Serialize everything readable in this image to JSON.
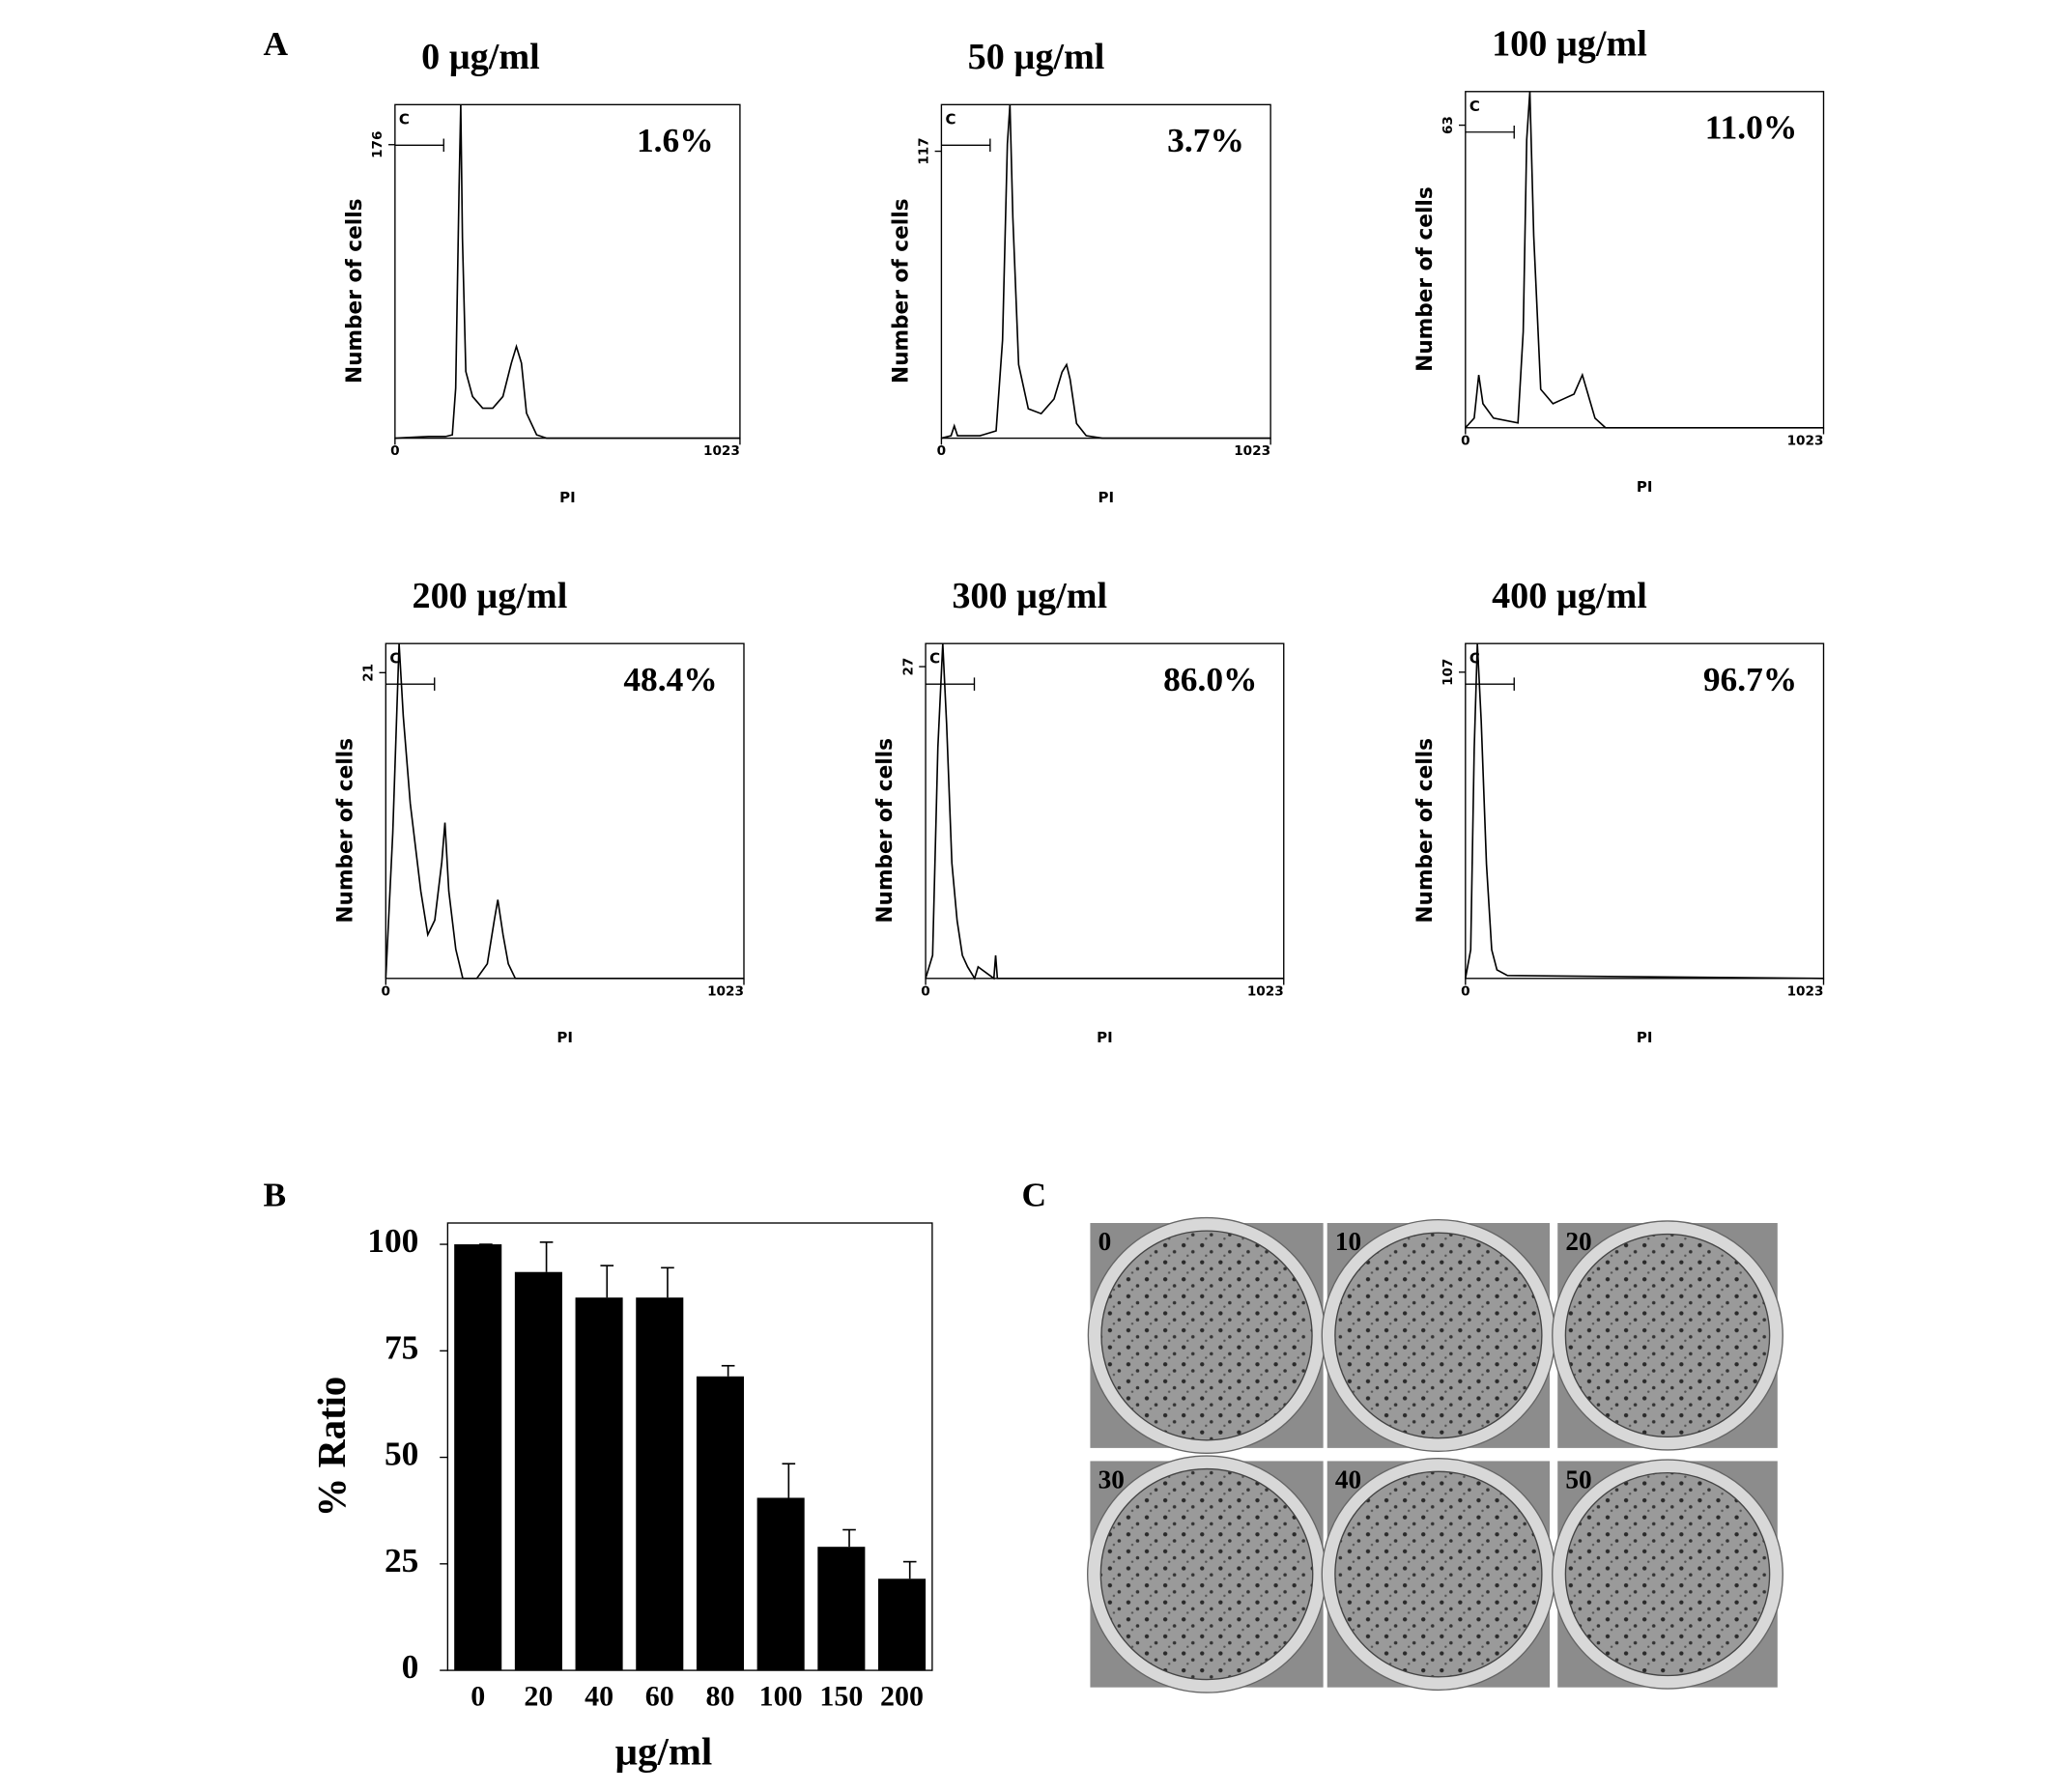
{
  "panel_labels": [
    "A",
    "B",
    "C"
  ],
  "plates": {
    "labels": [
      "0",
      "10",
      "20",
      "30",
      "40",
      "50"
    ]
  },
  "chart_data": [
    {
      "type": "line",
      "title": "0 µg/ml",
      "annotation": "1.6%",
      "gate_label": "C",
      "xlabel": "PI",
      "ylabel": "Number of cells",
      "color": "#000000",
      "x": [
        0,
        100,
        150,
        170,
        180,
        190,
        195,
        200,
        210,
        230,
        260,
        290,
        320,
        345,
        360,
        375,
        390,
        420,
        450,
        500,
        1023
      ],
      "values": [
        0,
        1,
        1,
        2,
        30,
        150,
        200,
        120,
        40,
        25,
        18,
        18,
        25,
        45,
        55,
        45,
        15,
        2,
        0,
        0,
        0
      ],
      "xlim": [
        0,
        1023
      ],
      "xticks": [
        0,
        1023
      ],
      "ylim": [
        0,
        200
      ],
      "yticks": [
        176
      ]
    },
    {
      "type": "line",
      "title": "50 µg/ml",
      "annotation": "3.7%",
      "gate_label": "C",
      "xlabel": "PI",
      "ylabel": "Number of cells",
      "color": "#000000",
      "x": [
        0,
        30,
        40,
        50,
        120,
        170,
        190,
        205,
        213,
        222,
        240,
        270,
        310,
        350,
        375,
        389,
        400,
        420,
        450,
        500,
        1023
      ],
      "values": [
        0,
        1,
        5,
        1,
        1,
        3,
        40,
        120,
        136,
        90,
        30,
        12,
        10,
        16,
        27,
        30,
        24,
        6,
        1,
        0,
        0
      ],
      "xlim": [
        0,
        1023
      ],
      "xticks": [
        0,
        1023
      ],
      "ylim": [
        0,
        136
      ],
      "yticks": [
        117
      ]
    },
    {
      "type": "line",
      "title": "100 µg/ml",
      "annotation": "11.0%",
      "gate_label": "C",
      "xlabel": "PI",
      "ylabel": "Number of cells",
      "color": "#000000",
      "x": [
        0,
        25,
        38,
        50,
        80,
        150,
        165,
        175,
        184,
        195,
        215,
        250,
        280,
        310,
        334,
        350,
        370,
        400,
        1023
      ],
      "values": [
        0,
        2,
        11,
        5,
        2,
        1,
        20,
        60,
        70,
        40,
        8,
        5,
        6,
        7,
        11,
        7,
        2,
        0,
        0
      ],
      "xlim": [
        0,
        1023
      ],
      "xticks": [
        0,
        1023
      ],
      "ylim": [
        0,
        70
      ],
      "yticks": [
        63
      ]
    },
    {
      "type": "line",
      "title": "200 µg/ml",
      "annotation": "48.4%",
      "gate_label": "C",
      "xlabel": "PI",
      "ylabel": "Number of cells",
      "color": "#000000",
      "x": [
        0,
        20,
        38,
        50,
        70,
        100,
        120,
        140,
        160,
        169,
        180,
        200,
        220,
        260,
        290,
        310,
        320,
        335,
        350,
        370,
        1023
      ],
      "values": [
        0,
        10,
        23,
        18,
        12,
        6,
        3,
        4,
        8,
        10.7,
        6,
        2,
        0,
        0,
        1,
        4,
        5.4,
        3,
        1,
        0,
        0
      ],
      "xlim": [
        0,
        1023
      ],
      "xticks": [
        0,
        1023
      ],
      "ylim": [
        0,
        23
      ],
      "yticks": [
        21
      ]
    },
    {
      "type": "line",
      "title": "300 µg/ml",
      "annotation": "86.0%",
      "gate_label": "C",
      "xlabel": "PI",
      "ylabel": "Number of cells",
      "color": "#000000",
      "x": [
        0,
        20,
        35,
        49,
        60,
        75,
        90,
        105,
        120,
        140,
        150,
        195,
        200,
        205,
        1023
      ],
      "values": [
        0,
        2,
        20,
        29,
        22,
        10,
        5,
        2,
        1,
        0,
        1,
        0,
        2,
        0,
        0
      ],
      "xlim": [
        0,
        1023
      ],
      "xticks": [
        0,
        1023
      ],
      "ylim": [
        0,
        29
      ],
      "yticks": [
        27
      ]
    },
    {
      "type": "line",
      "title": "400 µg/ml",
      "annotation": "96.7%",
      "gate_label": "C",
      "xlabel": "PI",
      "ylabel": "Number of cells",
      "color": "#000000",
      "x": [
        0,
        15,
        25,
        34,
        45,
        60,
        75,
        90,
        120,
        1023
      ],
      "values": [
        0,
        10,
        80,
        117,
        90,
        40,
        10,
        3,
        1,
        0
      ],
      "xlim": [
        0,
        1023
      ],
      "xticks": [
        0,
        1023
      ],
      "ylim": [
        0,
        117
      ],
      "yticks": [
        107
      ]
    },
    {
      "type": "bar",
      "xlabel": "µg/ml",
      "ylabel": "% Ratio",
      "color": "#000000",
      "categories": [
        "0",
        "20",
        "40",
        "60",
        "80",
        "100",
        "150",
        "200"
      ],
      "values": [
        100,
        93.5,
        87.5,
        87.5,
        69,
        40.5,
        29,
        21.5
      ],
      "errors": [
        0,
        7,
        7.5,
        7,
        2.5,
        8,
        4,
        4
      ],
      "ylim": [
        0,
        105
      ],
      "yticks": [
        0,
        25,
        50,
        75,
        100
      ]
    }
  ]
}
